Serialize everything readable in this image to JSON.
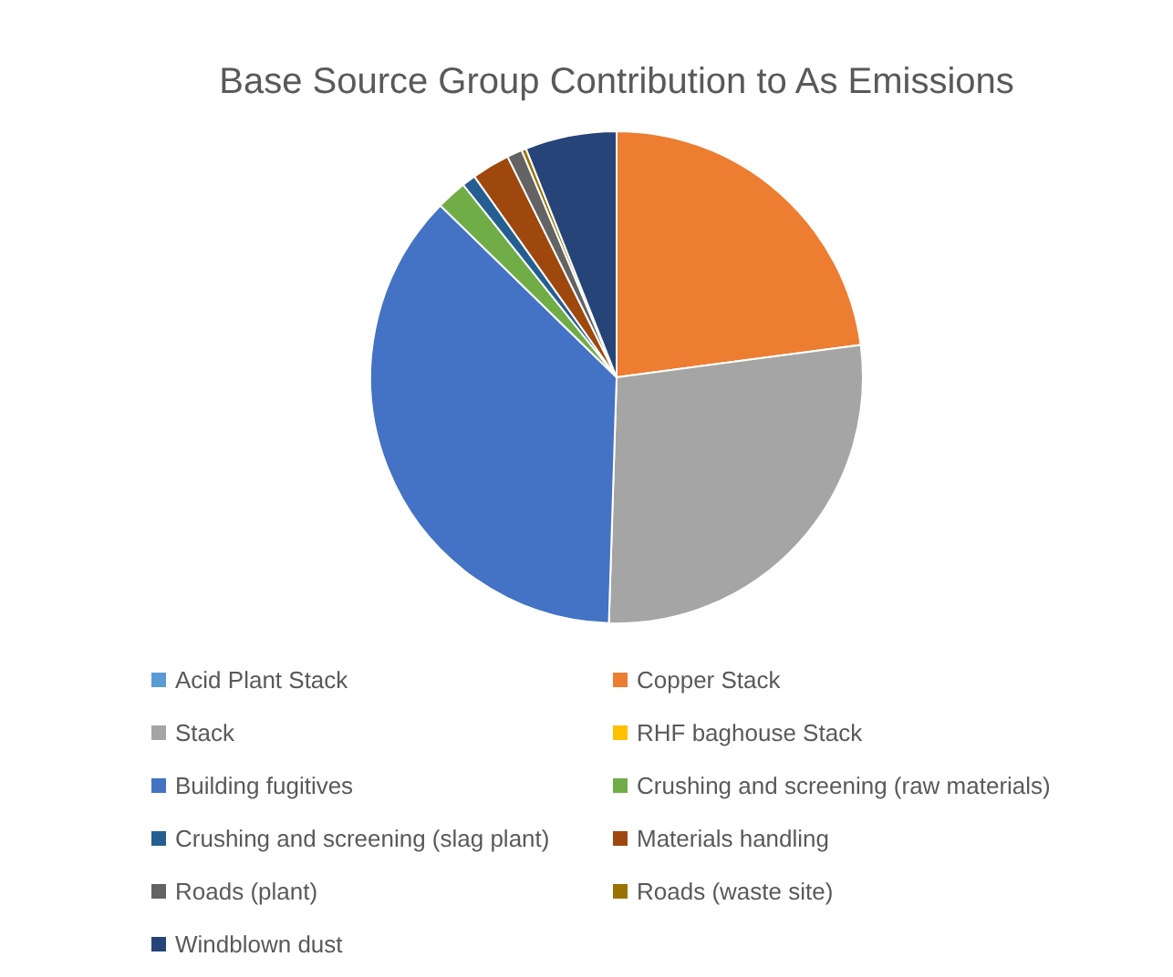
{
  "chart_data": {
    "type": "pie",
    "title": "Base Source Group Contribution to As Emissions",
    "categories": [
      "Acid Plant Stack",
      "Copper Stack",
      "Stack",
      "RHF baghouse Stack",
      "Building fugitives",
      "Crushing and screening (raw materials)",
      "Crushing and screening (slag plant)",
      "Materials handling",
      "Roads (plant)",
      "Roads (waste site)",
      "Windblown dust"
    ],
    "values": [
      0,
      22.9,
      27.6,
      0,
      36.8,
      2,
      0.9,
      2.5,
      1,
      0.3,
      6
    ],
    "colors": [
      "#5b9bd5",
      "#ed7d31",
      "#a5a5a5",
      "#ffc000",
      "#4472c4",
      "#70ad47",
      "#255e91",
      "#9e480e",
      "#636363",
      "#997300",
      "#264478"
    ],
    "legend": "bottom"
  }
}
